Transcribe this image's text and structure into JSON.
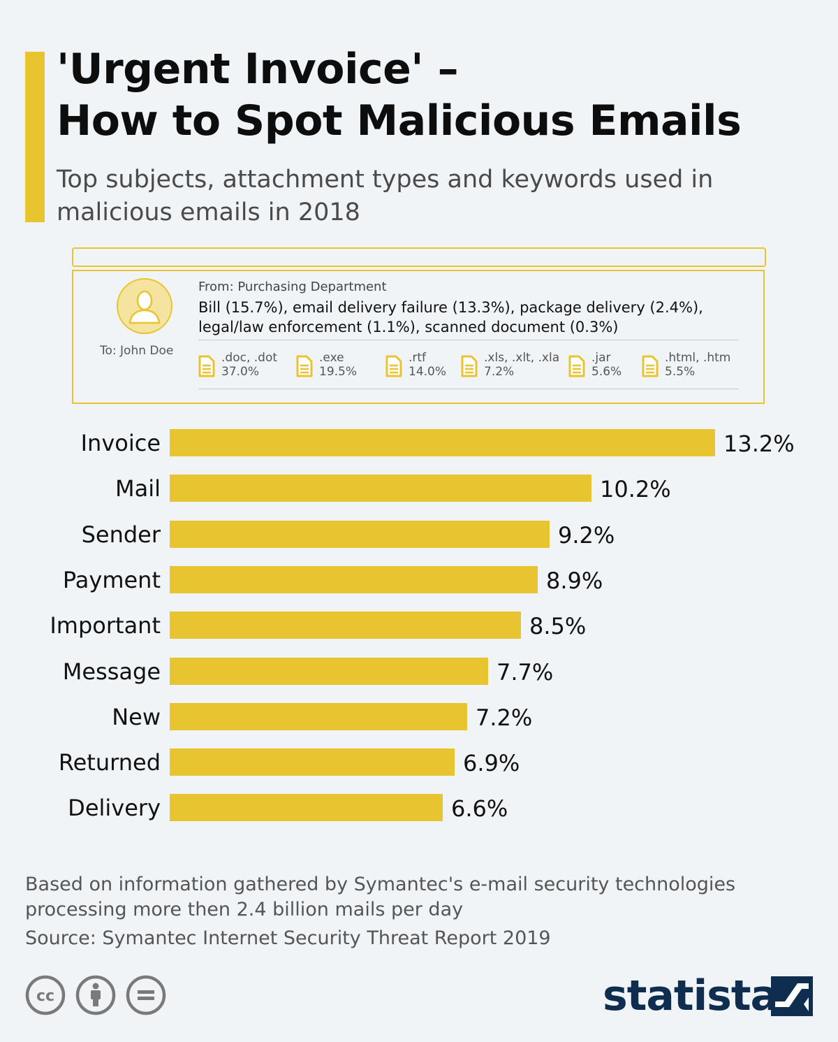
{
  "header": {
    "title_line1": "'Urgent Invoice' –",
    "title_line2": "How to Spot Malicious Emails",
    "subtitle": "Top subjects, attachment types and keywords used in malicious emails in 2018",
    "accent_color": "#e8c530"
  },
  "email": {
    "to": "To: John Doe",
    "from": "From: Purchasing Department",
    "subjects_line1": "Bill (15.7%), email delivery failure (13.3%), package delivery (2.4%),",
    "subjects_line2": "legal/law enforcement (1.1%), scanned document (0.3%)",
    "attachments": [
      {
        "types": ".doc, .dot",
        "share": "37.0%",
        "icon": "document-icon"
      },
      {
        "types": ".exe",
        "share": "19.5%",
        "icon": "document-icon"
      },
      {
        "types": ".rtf",
        "share": "14.0%",
        "icon": "document-icon"
      },
      {
        "types": ".xls, .xlt, .xla",
        "share": "7.2%",
        "icon": "document-icon"
      },
      {
        "types": ".jar",
        "share": "5.6%",
        "icon": "document-icon"
      },
      {
        "types": ".html, .htm",
        "share": "5.5%",
        "icon": "document-icon"
      }
    ]
  },
  "chart_data": {
    "type": "bar",
    "orientation": "horizontal",
    "title": "Top keywords used in malicious emails in 2018",
    "categories": [
      "Invoice",
      "Mail",
      "Sender",
      "Payment",
      "Important",
      "Message",
      "New",
      "Returned",
      "Delivery"
    ],
    "values": [
      13.2,
      10.2,
      9.2,
      8.9,
      8.5,
      7.7,
      7.2,
      6.9,
      6.6
    ],
    "value_labels": [
      "13.2%",
      "10.2%",
      "9.2%",
      "8.9%",
      "8.5%",
      "7.7%",
      "7.2%",
      "6.9%",
      "6.6%"
    ],
    "xlim": [
      0,
      13.2
    ],
    "unit": "%",
    "grid": false,
    "bar_color": "#e8c530"
  },
  "footer": {
    "note": "Based on information gathered by Symantec's e-mail security technologies processing more then 2.4 billion mails per day",
    "source": "Source: Symantec Internet Security Threat Report 2019",
    "brand": "statista",
    "brand_color": "#0f2d4e",
    "license_icons": [
      "cc-icon",
      "attribution-icon",
      "no-derivatives-icon"
    ]
  }
}
